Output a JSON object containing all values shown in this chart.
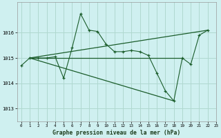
{
  "title": "Graphe pression niveau de la mer (hPa)",
  "bg_color": "#cff0f0",
  "grid_color": "#b0d8d0",
  "line_color": "#1a5c2a",
  "xlim": [
    -0.5,
    23
  ],
  "ylim": [
    1012.5,
    1017.2
  ],
  "yticks": [
    1013,
    1014,
    1015,
    1016
  ],
  "xticks": [
    0,
    1,
    2,
    3,
    4,
    5,
    6,
    7,
    8,
    9,
    10,
    11,
    12,
    13,
    14,
    15,
    16,
    17,
    18,
    19,
    20,
    21,
    22,
    23
  ],
  "series_main": [
    [
      0,
      1014.7
    ],
    [
      1,
      1015.0
    ],
    [
      2,
      1015.0
    ],
    [
      3,
      1015.0
    ],
    [
      4,
      1015.05
    ],
    [
      5,
      1014.2
    ],
    [
      6,
      1015.4
    ],
    [
      7,
      1016.75
    ],
    [
      8,
      1016.1
    ],
    [
      9,
      1016.05
    ],
    [
      10,
      1015.55
    ],
    [
      11,
      1015.25
    ],
    [
      12,
      1015.25
    ],
    [
      13,
      1015.3
    ],
    [
      14,
      1015.25
    ],
    [
      15,
      1015.1
    ],
    [
      16,
      1014.4
    ],
    [
      17,
      1013.7
    ],
    [
      18,
      1013.3
    ],
    [
      19,
      1015.0
    ],
    [
      20,
      1014.75
    ],
    [
      21,
      1015.9
    ],
    [
      22,
      1016.1
    ]
  ],
  "series_flat": [
    [
      1,
      1015.0
    ],
    [
      19,
      1015.0
    ]
  ],
  "series_up": [
    [
      1,
      1015.0
    ],
    [
      22,
      1016.1
    ]
  ],
  "series_down": [
    [
      1,
      1015.0
    ],
    [
      18,
      1013.3
    ]
  ]
}
